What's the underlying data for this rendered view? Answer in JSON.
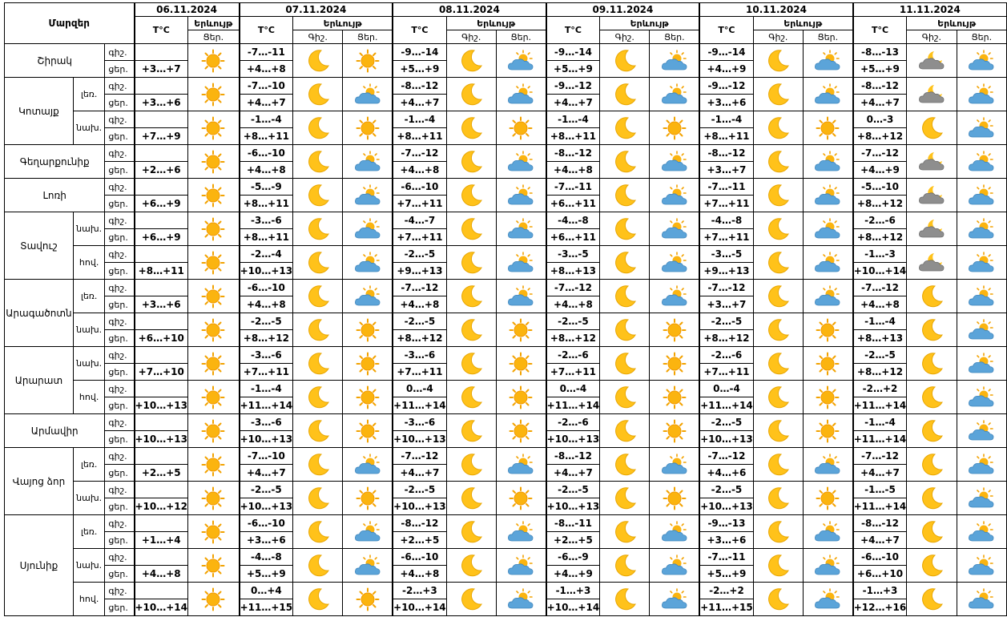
{
  "header": {
    "regions_label": "Մարզեր",
    "temp_label": "T°C",
    "phenomena_label": "Երևույթ",
    "night_label": "Գիշ.",
    "day_label": "Ցեր.",
    "dates": [
      "06.11.2024",
      "07.11.2024",
      "08.11.2024",
      "09.11.2024",
      "10.11.2024",
      "11.11.2024"
    ]
  },
  "regions": [
    {
      "name": "Շիրակ",
      "zones": [
        {
          "zone": "",
          "rows": [
            {
              "tod": "գիշ.",
              "t": [
                "",
                "-7…-11",
                "-9…-14",
                "-9…-14",
                "-9…-14",
                "-8…-13"
              ]
            },
            {
              "tod": "ցեր.",
              "t": [
                "+3…+7",
                "+4…+8",
                "+5…+9",
                "+5…+9",
                "+4…+9",
                "+5…+9"
              ]
            }
          ],
          "icons": [
            [
              "sun-icon"
            ],
            [
              "moon-icon",
              "sun-icon"
            ],
            [
              "moon-icon",
              "sun-cloud-icon"
            ],
            [
              "moon-icon",
              "sun-cloud-icon"
            ],
            [
              "moon-icon",
              "sun-cloud-icon"
            ],
            [
              "cloud-moon-icon",
              "sun-cloud-icon"
            ]
          ]
        }
      ]
    },
    {
      "name": "Կոտայք",
      "zones": [
        {
          "zone": "լեռ.",
          "rows": [
            {
              "tod": "գիշ.",
              "t": [
                "",
                "-7…-10",
                "-8…-12",
                "-9…-12",
                "-9…-12",
                "-8…-12"
              ]
            },
            {
              "tod": "ցեր.",
              "t": [
                "+3…+6",
                "+4…+7",
                "+4…+7",
                "+4…+7",
                "+3…+6",
                "+4…+7"
              ]
            }
          ],
          "icons": [
            [
              "sun-icon"
            ],
            [
              "moon-icon",
              "sun-cloud-icon"
            ],
            [
              "moon-icon",
              "sun-cloud-icon"
            ],
            [
              "moon-icon",
              "sun-cloud-icon"
            ],
            [
              "moon-icon",
              "sun-cloud-icon"
            ],
            [
              "cloud-moon-icon",
              "sun-cloud-icon"
            ]
          ]
        },
        {
          "zone": "նախ.",
          "rows": [
            {
              "tod": "գիշ.",
              "t": [
                "",
                "-1…-4",
                "-1…-4",
                "-1…-4",
                "-1…-4",
                "0…-3"
              ]
            },
            {
              "tod": "ցեր.",
              "t": [
                "+7…+9",
                "+8…+11",
                "+8…+11",
                "+8…+11",
                "+8…+11",
                "+8…+12"
              ]
            }
          ],
          "icons": [
            [
              "sun-icon"
            ],
            [
              "moon-icon",
              "sun-icon"
            ],
            [
              "moon-icon",
              "sun-icon"
            ],
            [
              "moon-icon",
              "sun-icon"
            ],
            [
              "moon-icon",
              "sun-icon"
            ],
            [
              "moon-icon",
              "sun-cloud-icon"
            ]
          ]
        }
      ]
    },
    {
      "name": "Գեղարքունիք",
      "zones": [
        {
          "zone": "",
          "rows": [
            {
              "tod": "գիշ.",
              "t": [
                "",
                "-6…-10",
                "-7…-12",
                "-8…-12",
                "-8…-12",
                "-7…-12"
              ]
            },
            {
              "tod": "ցեր.",
              "t": [
                "+2…+6",
                "+4…+8",
                "+4…+8",
                "+4…+8",
                "+3…+7",
                "+4…+9"
              ]
            }
          ],
          "icons": [
            [
              "sun-icon"
            ],
            [
              "moon-icon",
              "sun-cloud-icon"
            ],
            [
              "moon-icon",
              "sun-cloud-icon"
            ],
            [
              "moon-icon",
              "sun-cloud-icon"
            ],
            [
              "moon-icon",
              "sun-cloud-icon"
            ],
            [
              "cloud-moon-icon",
              "sun-cloud-icon"
            ]
          ]
        }
      ]
    },
    {
      "name": "Լոռի",
      "zones": [
        {
          "zone": "",
          "rows": [
            {
              "tod": "գիշ.",
              "t": [
                "",
                "-5…-9",
                "-6…-10",
                "-7…-11",
                "-7…-11",
                "-5…-10"
              ]
            },
            {
              "tod": "ցեր.",
              "t": [
                "+6…+9",
                "+8…+11",
                "+7…+11",
                "+6…+11",
                "+7…+11",
                "+8…+12"
              ]
            }
          ],
          "icons": [
            [
              "sun-icon"
            ],
            [
              "moon-icon",
              "sun-cloud-icon"
            ],
            [
              "moon-icon",
              "sun-cloud-icon"
            ],
            [
              "moon-icon",
              "sun-cloud-icon"
            ],
            [
              "moon-icon",
              "sun-cloud-icon"
            ],
            [
              "cloud-moon-icon",
              "sun-cloud-icon"
            ]
          ]
        }
      ]
    },
    {
      "name": "Տավուշ",
      "zones": [
        {
          "zone": "նախ.",
          "rows": [
            {
              "tod": "գիշ.",
              "t": [
                "",
                "-3…-6",
                "-4…-7",
                "-4…-8",
                "-4…-8",
                "-2…-6"
              ]
            },
            {
              "tod": "ցեր.",
              "t": [
                "+6…+9",
                "+8…+11",
                "+7…+11",
                "+6…+11",
                "+7…+11",
                "+8…+12"
              ]
            }
          ],
          "icons": [
            [
              "sun-icon"
            ],
            [
              "moon-icon",
              "sun-cloud-icon"
            ],
            [
              "moon-icon",
              "sun-cloud-icon"
            ],
            [
              "moon-icon",
              "sun-cloud-icon"
            ],
            [
              "moon-icon",
              "sun-cloud-icon"
            ],
            [
              "cloud-moon-icon",
              "sun-cloud-icon"
            ]
          ]
        },
        {
          "zone": "հով.",
          "rows": [
            {
              "tod": "գիշ.",
              "t": [
                "",
                "-2…-4",
                "-2…-5",
                "-3…-5",
                "-3…-5",
                "-1…-3"
              ]
            },
            {
              "tod": "ցեր.",
              "t": [
                "+8…+11",
                "+10…+13",
                "+9…+13",
                "+8…+13",
                "+9…+13",
                "+10…+14"
              ]
            }
          ],
          "icons": [
            [
              "sun-icon"
            ],
            [
              "moon-icon",
              "sun-cloud-icon"
            ],
            [
              "moon-icon",
              "sun-cloud-icon"
            ],
            [
              "moon-icon",
              "sun-cloud-icon"
            ],
            [
              "moon-icon",
              "sun-cloud-icon"
            ],
            [
              "cloud-moon-icon",
              "sun-cloud-icon"
            ]
          ]
        }
      ]
    },
    {
      "name": "Արագածոտն",
      "zones": [
        {
          "zone": "լեռ.",
          "rows": [
            {
              "tod": "գիշ.",
              "t": [
                "",
                "-6…-10",
                "-7…-12",
                "-7…-12",
                "-7…-12",
                "-7…-12"
              ]
            },
            {
              "tod": "ցեր.",
              "t": [
                "+3…+6",
                "+4…+8",
                "+4…+8",
                "+4…+8",
                "+3…+7",
                "+4…+8"
              ]
            }
          ],
          "icons": [
            [
              "sun-icon"
            ],
            [
              "moon-icon",
              "sun-cloud-icon"
            ],
            [
              "moon-icon",
              "sun-cloud-icon"
            ],
            [
              "moon-icon",
              "sun-cloud-icon"
            ],
            [
              "moon-icon",
              "sun-cloud-icon"
            ],
            [
              "moon-icon",
              "sun-cloud-icon"
            ]
          ]
        },
        {
          "zone": "նախ.",
          "rows": [
            {
              "tod": "գիշ.",
              "t": [
                "",
                "-2…-5",
                "-2…-5",
                "-2…-5",
                "-2…-5",
                "-1…-4"
              ]
            },
            {
              "tod": "ցեր.",
              "t": [
                "+6…+10",
                "+8…+12",
                "+8…+12",
                "+8…+12",
                "+8…+12",
                "+8…+13"
              ]
            }
          ],
          "icons": [
            [
              "sun-icon"
            ],
            [
              "moon-icon",
              "sun-icon"
            ],
            [
              "moon-icon",
              "sun-icon"
            ],
            [
              "moon-icon",
              "sun-icon"
            ],
            [
              "moon-icon",
              "sun-icon"
            ],
            [
              "moon-icon",
              "sun-cloud-icon"
            ]
          ]
        }
      ]
    },
    {
      "name": "Արարատ",
      "zones": [
        {
          "zone": "նախ.",
          "rows": [
            {
              "tod": "գիշ.",
              "t": [
                "",
                "-3…-6",
                "-3…-6",
                "-2…-6",
                "-2…-6",
                "-2…-5"
              ]
            },
            {
              "tod": "ցեր.",
              "t": [
                "+7…+10",
                "+7…+11",
                "+7…+11",
                "+7…+11",
                "+7…+11",
                "+8…+12"
              ]
            }
          ],
          "icons": [
            [
              "sun-icon"
            ],
            [
              "moon-icon",
              "sun-icon"
            ],
            [
              "moon-icon",
              "sun-icon"
            ],
            [
              "moon-icon",
              "sun-icon"
            ],
            [
              "moon-icon",
              "sun-icon"
            ],
            [
              "moon-icon",
              "sun-cloud-icon"
            ]
          ]
        },
        {
          "zone": "հով.",
          "rows": [
            {
              "tod": "գիշ.",
              "t": [
                "",
                "-1…-4",
                "0…-4",
                "0…-4",
                "0…-4",
                "-2…+2"
              ]
            },
            {
              "tod": "ցեր.",
              "t": [
                "+10…+13",
                "+11…+14",
                "+11…+14",
                "+11…+14",
                "+11…+14",
                "+11…+14"
              ]
            }
          ],
          "icons": [
            [
              "sun-icon"
            ],
            [
              "moon-icon",
              "sun-icon"
            ],
            [
              "moon-icon",
              "sun-icon"
            ],
            [
              "moon-icon",
              "sun-icon"
            ],
            [
              "moon-icon",
              "sun-icon"
            ],
            [
              "moon-icon",
              "sun-cloud-icon"
            ]
          ]
        }
      ]
    },
    {
      "name": "Արմավիր",
      "zones": [
        {
          "zone": "",
          "rows": [
            {
              "tod": "գիշ.",
              "t": [
                "",
                "-3…-6",
                "-3…-6",
                "-2…-6",
                "-2…-5",
                "-1…-4"
              ]
            },
            {
              "tod": "ցեր.",
              "t": [
                "+10…+13",
                "+10…+13",
                "+10…+13",
                "+10…+13",
                "+10…+13",
                "+11…+14"
              ]
            }
          ],
          "icons": [
            [
              "sun-icon"
            ],
            [
              "moon-icon",
              "sun-icon"
            ],
            [
              "moon-icon",
              "sun-icon"
            ],
            [
              "moon-icon",
              "sun-icon"
            ],
            [
              "moon-icon",
              "sun-icon"
            ],
            [
              "moon-icon",
              "sun-cloud-icon"
            ]
          ]
        }
      ]
    },
    {
      "name": "Վայոց ձոր",
      "zones": [
        {
          "zone": "լեռ.",
          "rows": [
            {
              "tod": "գիշ.",
              "t": [
                "",
                "-7…-10",
                "-7…-12",
                "-8…-12",
                "-7…-12",
                "-7…-12"
              ]
            },
            {
              "tod": "ցեր.",
              "t": [
                "+2…+5",
                "+4…+7",
                "+4…+7",
                "+4…+7",
                "+4…+6",
                "+4…+7"
              ]
            }
          ],
          "icons": [
            [
              "sun-icon"
            ],
            [
              "moon-icon",
              "sun-cloud-icon"
            ],
            [
              "moon-icon",
              "sun-cloud-icon"
            ],
            [
              "moon-icon",
              "sun-cloud-icon"
            ],
            [
              "moon-icon",
              "sun-cloud-icon"
            ],
            [
              "moon-icon",
              "sun-cloud-icon"
            ]
          ]
        },
        {
          "zone": "նախ.",
          "rows": [
            {
              "tod": "գիշ.",
              "t": [
                "",
                "-2…-5",
                "-2…-5",
                "-2…-5",
                "-2…-5",
                "-1…-5"
              ]
            },
            {
              "tod": "ցեր.",
              "t": [
                "+10…+12",
                "+10…+13",
                "+10…+13",
                "+10…+13",
                "+10…+13",
                "+11…+14"
              ]
            }
          ],
          "icons": [
            [
              "sun-icon"
            ],
            [
              "moon-icon",
              "sun-icon"
            ],
            [
              "moon-icon",
              "sun-icon"
            ],
            [
              "moon-icon",
              "sun-icon"
            ],
            [
              "moon-icon",
              "sun-icon"
            ],
            [
              "moon-icon",
              "sun-cloud-icon"
            ]
          ]
        }
      ]
    },
    {
      "name": "Սյունիք",
      "zones": [
        {
          "zone": "լեռ.",
          "rows": [
            {
              "tod": "գիշ.",
              "t": [
                "",
                "-6…-10",
                "-8…-12",
                "-8…-11",
                "-9…-13",
                "-8…-12"
              ]
            },
            {
              "tod": "ցեր.",
              "t": [
                "+1…+4",
                "+3…+6",
                "+2…+5",
                "+2…+5",
                "+3…+6",
                "+4…+7"
              ]
            }
          ],
          "icons": [
            [
              "sun-icon"
            ],
            [
              "moon-icon",
              "sun-cloud-icon"
            ],
            [
              "moon-icon",
              "sun-cloud-icon"
            ],
            [
              "moon-icon",
              "sun-cloud-icon"
            ],
            [
              "moon-icon",
              "sun-cloud-icon"
            ],
            [
              "moon-icon",
              "sun-cloud-icon"
            ]
          ]
        },
        {
          "zone": "նախ.",
          "rows": [
            {
              "tod": "գիշ.",
              "t": [
                "",
                "-4…-8",
                "-6…-10",
                "-6…-9",
                "-7…-11",
                "-6…-10"
              ]
            },
            {
              "tod": "ցեր.",
              "t": [
                "+4…+8",
                "+5…+9",
                "+4…+8",
                "+4…+9",
                "+5…+9",
                "+6…+10"
              ]
            }
          ],
          "icons": [
            [
              "sun-icon"
            ],
            [
              "moon-icon",
              "sun-cloud-icon"
            ],
            [
              "moon-icon",
              "sun-cloud-icon"
            ],
            [
              "moon-icon",
              "sun-cloud-icon"
            ],
            [
              "moon-icon",
              "sun-cloud-icon"
            ],
            [
              "moon-icon",
              "sun-cloud-icon"
            ]
          ]
        },
        {
          "zone": "հով.",
          "rows": [
            {
              "tod": "գիշ.",
              "t": [
                "",
                "0…+4",
                "-2…+3",
                "-1…+3",
                "-2…+2",
                "-1…+3"
              ]
            },
            {
              "tod": "ցեր.",
              "t": [
                "+10…+14",
                "+11…+15",
                "+10…+14",
                "+10…+14",
                "+11…+15",
                "+12…+16"
              ]
            }
          ],
          "icons": [
            [
              "sun-icon"
            ],
            [
              "moon-icon",
              "sun-icon"
            ],
            [
              "moon-icon",
              "sun-cloud-icon"
            ],
            [
              "moon-icon",
              "sun-cloud-icon"
            ],
            [
              "moon-icon",
              "sun-cloud-icon"
            ],
            [
              "moon-icon",
              "sun-cloud-icon"
            ]
          ]
        }
      ]
    }
  ]
}
